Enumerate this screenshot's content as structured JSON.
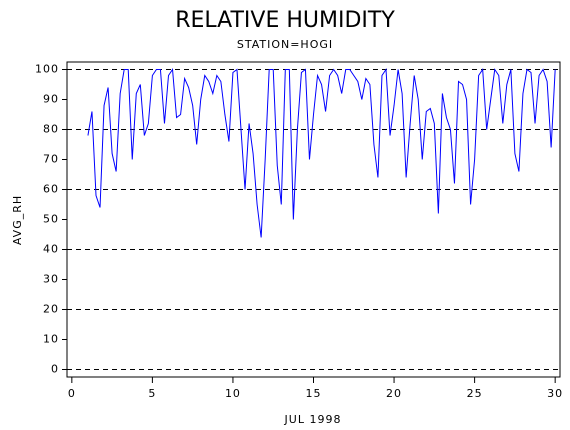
{
  "chart_data": {
    "type": "line",
    "title": "RELATIVE HUMIDITY",
    "subtitle": "STATION=HOGI",
    "x_label": "JUL 1998",
    "y_label": "AVG_RH",
    "xlim": [
      -0.3,
      30.3
    ],
    "ylim": [
      -2.5,
      102.5
    ],
    "xticks": [
      0,
      5,
      10,
      15,
      20,
      25,
      30
    ],
    "yticks": [
      0,
      10,
      20,
      30,
      40,
      50,
      60,
      70,
      80,
      90,
      100
    ],
    "grid_lines": [
      0,
      20,
      40,
      60,
      80,
      100
    ],
    "series": [
      {
        "color": "#0000ff",
        "x": [
          1,
          1.25,
          1.5,
          1.75,
          2,
          2.25,
          2.5,
          2.75,
          3,
          3.25,
          3.5,
          3.75,
          4,
          4.25,
          4.5,
          4.75,
          5,
          5.25,
          5.5,
          5.75,
          6,
          6.25,
          6.5,
          6.75,
          7,
          7.25,
          7.5,
          7.75,
          8,
          8.25,
          8.5,
          8.75,
          9,
          9.25,
          9.5,
          9.75,
          10,
          10.25,
          10.5,
          10.75,
          11,
          11.25,
          11.5,
          11.75,
          12,
          12.25,
          12.5,
          12.75,
          13,
          13.25,
          13.5,
          13.75,
          14,
          14.25,
          14.5,
          14.75,
          15,
          15.25,
          15.5,
          15.75,
          16,
          16.25,
          16.5,
          16.75,
          17,
          17.25,
          17.5,
          17.75,
          18,
          18.25,
          18.5,
          18.75,
          19,
          19.25,
          19.5,
          19.75,
          20,
          20.25,
          20.5,
          20.75,
          21,
          21.25,
          21.5,
          21.75,
          22,
          22.25,
          22.5,
          22.75,
          23,
          23.25,
          23.5,
          23.75,
          24,
          24.25,
          24.5,
          24.75,
          25,
          25.25,
          25.5,
          25.75,
          26,
          26.25,
          26.5,
          26.75,
          27,
          27.25,
          27.5,
          27.75,
          28,
          28.25,
          28.5,
          28.75,
          29,
          29.25,
          29.5,
          29.75,
          30
        ],
        "values": [
          78,
          86,
          58,
          54,
          88,
          94,
          72,
          66,
          92,
          100,
          100,
          70,
          92,
          95,
          78,
          82,
          98,
          100,
          100,
          82,
          98,
          100,
          84,
          85,
          97,
          94,
          88,
          75,
          90,
          98,
          96,
          92,
          98,
          96,
          85,
          76,
          99,
          100,
          80,
          60,
          82,
          72,
          55,
          44,
          70,
          100,
          100,
          68,
          55,
          100,
          100,
          50,
          80,
          99,
          100,
          70,
          85,
          98,
          95,
          86,
          98,
          100,
          98,
          92,
          100,
          100,
          98,
          96,
          90,
          97,
          95,
          75,
          64,
          98,
          100,
          78,
          88,
          100,
          92,
          64,
          82,
          98,
          90,
          70,
          86,
          87,
          82,
          52,
          92,
          84,
          80,
          62,
          96,
          95,
          90,
          55,
          70,
          98,
          100,
          80,
          90,
          100,
          98,
          82,
          95,
          100,
          72,
          66,
          92,
          100,
          99,
          82,
          98,
          100,
          96,
          74,
          100
        ]
      }
    ]
  }
}
